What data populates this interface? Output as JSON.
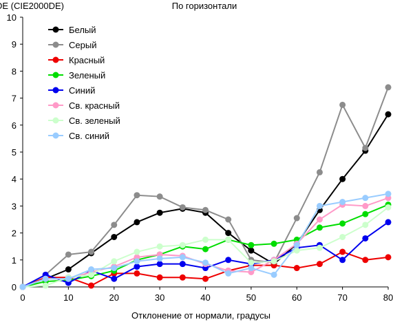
{
  "chart_data": {
    "type": "line",
    "title": "По горизонтали",
    "ylabel": "DE (CIE2000DE)",
    "xlabel": "Отклонение от нормали, градусы",
    "x": [
      0,
      5,
      10,
      15,
      20,
      25,
      30,
      35,
      40,
      45,
      50,
      55,
      60,
      65,
      70,
      75,
      80
    ],
    "xlim": [
      0,
      80
    ],
    "ylim": [
      0,
      10
    ],
    "xticks": [
      0,
      10,
      20,
      30,
      40,
      50,
      60,
      70,
      80
    ],
    "yticks": [
      0,
      1,
      2,
      3,
      4,
      5,
      6,
      7,
      8,
      9,
      10
    ],
    "grid": false,
    "legend_position": "top-left",
    "series": [
      {
        "name": "Белый",
        "color": "#000000",
        "values": [
          0,
          0.3,
          0.65,
          1.25,
          1.85,
          2.4,
          2.75,
          2.9,
          2.75,
          2.0,
          1.35,
          0.85,
          1.6,
          2.85,
          4.0,
          5.05,
          6.4
        ]
      },
      {
        "name": "Серый",
        "color": "#8c8c8c",
        "values": [
          0,
          0.45,
          1.2,
          1.3,
          2.3,
          3.4,
          3.35,
          2.95,
          2.85,
          2.5,
          1.0,
          0.9,
          2.55,
          4.25,
          6.75,
          5.15,
          7.4
        ]
      },
      {
        "name": "Красный",
        "color": "#ee0000",
        "values": [
          0,
          0.35,
          0.35,
          0.05,
          0.5,
          0.5,
          0.35,
          0.35,
          0.3,
          0.6,
          0.8,
          0.8,
          0.7,
          0.85,
          1.3,
          1.0,
          1.1
        ]
      },
      {
        "name": "Зеленый",
        "color": "#00dd00",
        "values": [
          0,
          0.2,
          0.25,
          0.4,
          0.6,
          1.0,
          1.2,
          1.5,
          1.4,
          1.75,
          1.55,
          1.6,
          1.75,
          2.2,
          2.35,
          2.7,
          3.05
        ]
      },
      {
        "name": "Синий",
        "color": "#0000ee",
        "values": [
          0,
          0.45,
          0.15,
          0.6,
          0.3,
          0.75,
          0.85,
          0.85,
          0.7,
          1.0,
          0.85,
          1.0,
          1.45,
          1.55,
          1.0,
          1.8,
          2.4
        ]
      },
      {
        "name": "Св. красный",
        "color": "#ff9ac8",
        "values": [
          0,
          0.3,
          0.3,
          0.55,
          0.75,
          1.1,
          1.2,
          1.15,
          0.85,
          0.6,
          0.55,
          1.0,
          1.6,
          2.5,
          3.05,
          3.0,
          3.3
        ]
      },
      {
        "name": "Св. зеленый",
        "color": "#ccffcc",
        "values": [
          0,
          0.05,
          0.35,
          0.45,
          0.95,
          1.3,
          1.5,
          1.55,
          1.75,
          1.75,
          0.9,
          0.95,
          1.35,
          1.45,
          1.85,
          2.3,
          2.95
        ]
      },
      {
        "name": "Св. синий",
        "color": "#99ccff",
        "values": [
          0,
          0.3,
          0.3,
          0.65,
          0.7,
          0.95,
          1.05,
          1.1,
          0.9,
          0.5,
          0.7,
          0.45,
          1.55,
          3.0,
          3.15,
          3.3,
          3.45
        ]
      }
    ]
  }
}
